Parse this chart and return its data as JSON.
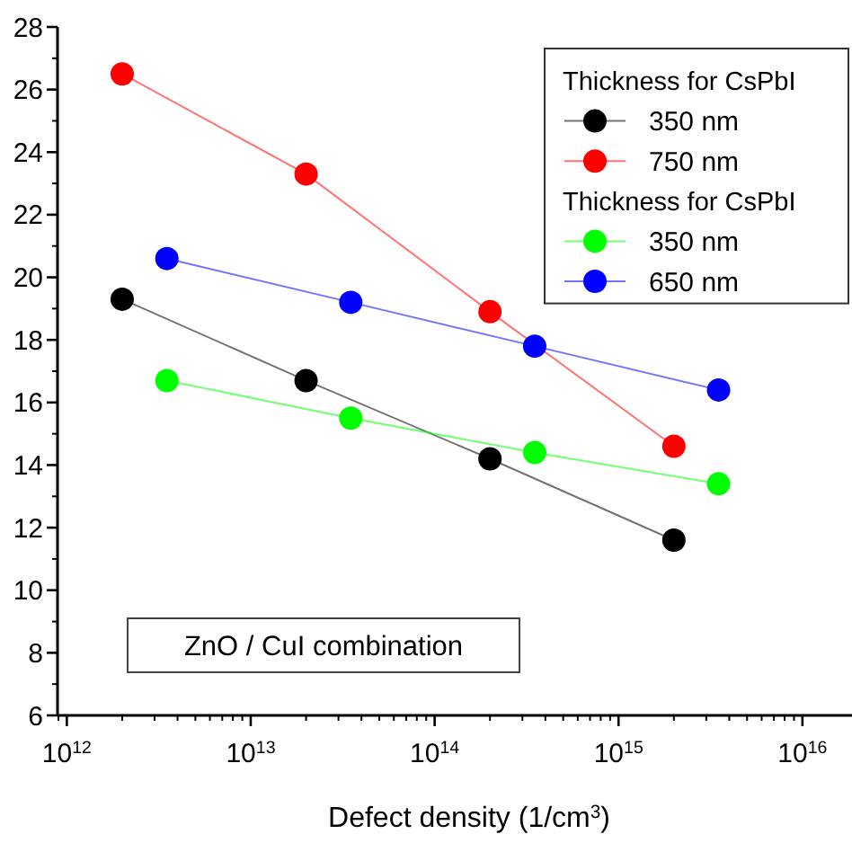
{
  "chart_data": {
    "type": "line",
    "xlabel": "Defect density (1/cm$^{3}$)",
    "log": "x",
    "xlim": [
      890000000000.0,
      1.86e+16
    ],
    "ylim": [
      6,
      28
    ],
    "xticks": [
      {
        "value": 1000000000000.0,
        "label": "10$^{12}$"
      },
      {
        "value": 10000000000000.0,
        "label": "10$^{13}$"
      },
      {
        "value": 100000000000000.0,
        "label": "10$^{14}$"
      },
      {
        "value": 1000000000000000.0,
        "label": "10$^{15}$"
      },
      {
        "value": 1e+16,
        "label": "10$^{16}$"
      }
    ],
    "yticks": [
      6,
      8,
      10,
      12,
      14,
      16,
      18,
      20,
      22,
      24,
      26,
      28
    ],
    "legend": "top right",
    "marker": "circle",
    "line_style": "solid",
    "grid": false,
    "series": [
      {
        "name": "350 nm",
        "color": "#000000",
        "x": [
          2000000000000.0,
          20000000000000.0,
          200000000000000.0,
          2000000000000000.0
        ],
        "values": [
          19.3,
          16.7,
          14.2,
          11.6
        ]
      },
      {
        "name": "750 nm",
        "color": "#ff0000",
        "x": [
          2000000000000.0,
          20000000000000.0,
          200000000000000.0,
          2000000000000000.0
        ],
        "values": [
          26.5,
          23.3,
          18.9,
          14.6
        ]
      },
      {
        "name": "350 nm",
        "color": "#00ff00",
        "x": [
          3500000000000.0,
          35000000000000.0,
          350000000000000.0,
          3500000000000000.0
        ],
        "values": [
          16.7,
          15.5,
          14.4,
          13.4
        ]
      },
      {
        "name": "650 nm",
        "color": "#0000ff",
        "x": [
          3500000000000.0,
          35000000000000.0,
          350000000000000.0,
          3500000000000000.0
        ],
        "values": [
          20.6,
          19.2,
          17.8,
          16.4
        ]
      }
    ],
    "annotations": [
      "Thickness for CsPbI",
      "Thickness for CsPbI",
      "ZnO / CuI combination"
    ]
  }
}
